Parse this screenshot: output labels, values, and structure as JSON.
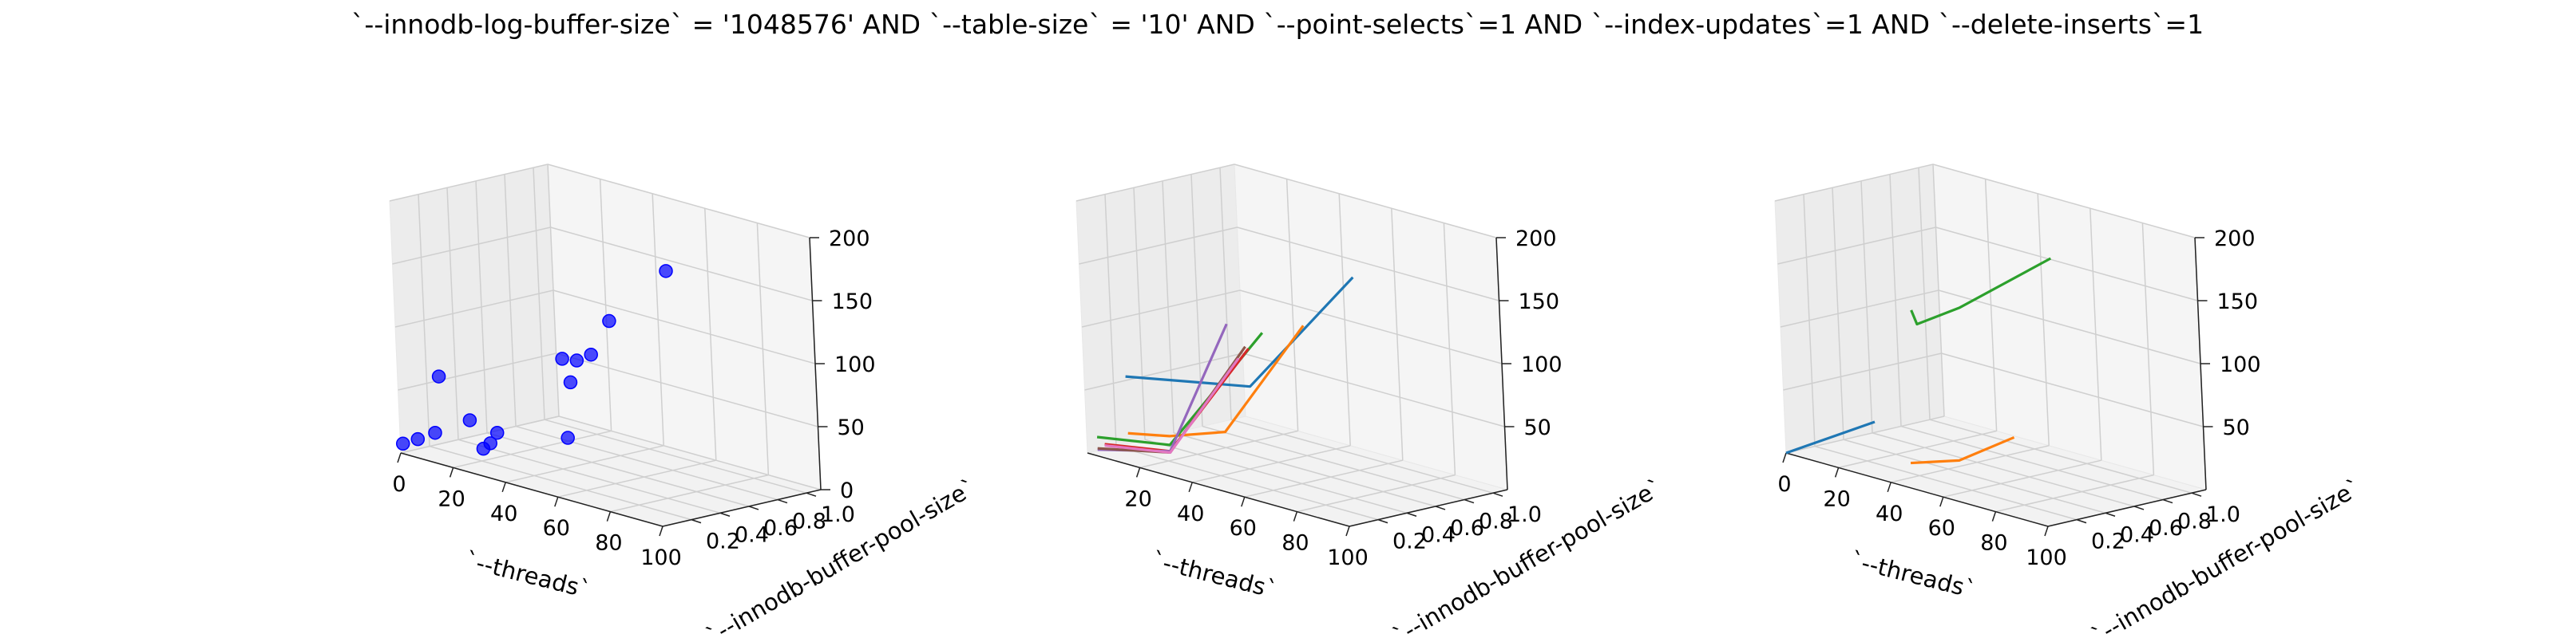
{
  "figure": {
    "title": "`--innodb-log-buffer-size` = '1048576' AND `--table-size` = '10'  AND `--point-selects`=1 AND `--index-updates`=1 AND `--delete-inserts`=1"
  },
  "chart_data": [
    {
      "type": "scatter3d",
      "xlabel": "`--threads`",
      "ylabel": "`--innodb-buffer-pool-size`",
      "zlabel": "",
      "xlim": [
        0,
        100
      ],
      "ylim": [
        0.2,
        1.0
      ],
      "zlim": [
        0,
        200
      ],
      "x_ticks": [
        "0",
        "20",
        "40",
        "60",
        "80",
        "100"
      ],
      "y_ticks": [
        "0.2",
        "0.4",
        "0.6",
        "0.8",
        "1.0"
      ],
      "z_ticks": [
        "0",
        "50",
        "100",
        "150",
        "200"
      ],
      "grid": true,
      "color": "#0000ff",
      "points": [
        {
          "x": 1,
          "y": 0.0,
          "z": 8
        },
        {
          "x": 4,
          "y": 0.05,
          "z": 12
        },
        {
          "x": 8,
          "y": 0.1,
          "z": 18
        },
        {
          "x": 16,
          "y": 0.2,
          "z": 30
        },
        {
          "x": 16,
          "y": 0.0,
          "z": 70
        },
        {
          "x": 32,
          "y": 0.0,
          "z": 22
        },
        {
          "x": 32,
          "y": 0.05,
          "z": 25
        },
        {
          "x": 32,
          "y": 0.1,
          "z": 32
        },
        {
          "x": 48,
          "y": 0.3,
          "z": 32
        },
        {
          "x": 64,
          "y": 0.0,
          "z": 112
        },
        {
          "x": 64,
          "y": 0.1,
          "z": 108
        },
        {
          "x": 64,
          "y": 0.2,
          "z": 110
        },
        {
          "x": 64,
          "y": 0.05,
          "z": 92
        },
        {
          "x": 80,
          "y": 0.05,
          "z": 150
        },
        {
          "x": 100,
          "y": 0.1,
          "z": 200
        }
      ]
    },
    {
      "type": "line3d",
      "xlabel": "`--threads`",
      "ylabel": "`--innodb-buffer-pool-size`",
      "zlabel": "",
      "xlim": [
        0,
        100
      ],
      "ylim": [
        0.2,
        1.0
      ],
      "zlim": [
        0,
        200
      ],
      "x_ticks": [
        "20",
        "40",
        "60",
        "80",
        "100"
      ],
      "y_ticks": [
        "0.2",
        "0.4",
        "0.6",
        "0.8",
        "1.0"
      ],
      "z_ticks": [
        "50",
        "100",
        "150",
        "200"
      ],
      "grid": true,
      "series": [
        {
          "color": "#1f77b4",
          "points": [
            [
              16,
              0.0,
              70
            ],
            [
              64,
              0.0,
              90
            ],
            [
              100,
              0.1,
              195
            ]
          ]
        },
        {
          "color": "#ff7f0e",
          "points": [
            [
              16,
              0.0,
              25
            ],
            [
              32,
              0.0,
              32
            ],
            [
              48,
              0.1,
              42
            ],
            [
              80,
              0.1,
              145
            ]
          ]
        },
        {
          "color": "#2ca02c",
          "points": [
            [
              4,
              0.0,
              15
            ],
            [
              32,
              0.0,
              25
            ],
            [
              64,
              0.1,
              130
            ]
          ]
        },
        {
          "color": "#d62728",
          "points": [
            [
              4,
              0.05,
              8
            ],
            [
              32,
              0.0,
              20
            ],
            [
              64,
              0.0,
              120
            ]
          ]
        },
        {
          "color": "#9467bd",
          "points": [
            [
              4,
              0.0,
              5
            ],
            [
              32,
              0.0,
              20
            ],
            [
              56,
              0.0,
              135
            ]
          ]
        },
        {
          "color": "#8c564b",
          "points": [
            [
              4,
              0.0,
              6
            ],
            [
              32,
              0.0,
              19
            ],
            [
              60,
              0.05,
              118
            ]
          ]
        },
        {
          "color": "#e377c2",
          "points": [
            [
              4,
              0.05,
              7
            ],
            [
              32,
              0.0,
              19
            ],
            [
              60,
              0.0,
              110
            ]
          ]
        }
      ]
    },
    {
      "type": "line3d",
      "xlabel": "`--threads`",
      "ylabel": "`--innodb-buffer-pool-size`",
      "zlabel": "",
      "xlim": [
        0,
        100
      ],
      "ylim": [
        0.2,
        1.0
      ],
      "zlim": [
        0,
        200
      ],
      "x_ticks": [
        "0",
        "20",
        "40",
        "60",
        "80",
        "100"
      ],
      "y_ticks": [
        "0.2",
        "0.4",
        "0.6",
        "0.8",
        "1.0"
      ],
      "z_ticks": [
        "50",
        "100",
        "150",
        "200"
      ],
      "grid": true,
      "series": [
        {
          "color": "#1f77b4",
          "points": [
            [
              0,
              0.0,
              0
            ],
            [
              32,
              0.05,
              42
            ]
          ]
        },
        {
          "color": "#ff7f0e",
          "points": [
            [
              48,
              0.0,
              20
            ],
            [
              64,
              0.05,
              30
            ],
            [
              80,
              0.15,
              55
            ]
          ]
        },
        {
          "color": "#2ca02c",
          "points": [
            [
              48,
              0.05,
              140
            ],
            [
              50,
              0.05,
              130
            ],
            [
              64,
              0.1,
              150
            ],
            [
              100,
              0.1,
              210
            ]
          ]
        }
      ]
    }
  ]
}
